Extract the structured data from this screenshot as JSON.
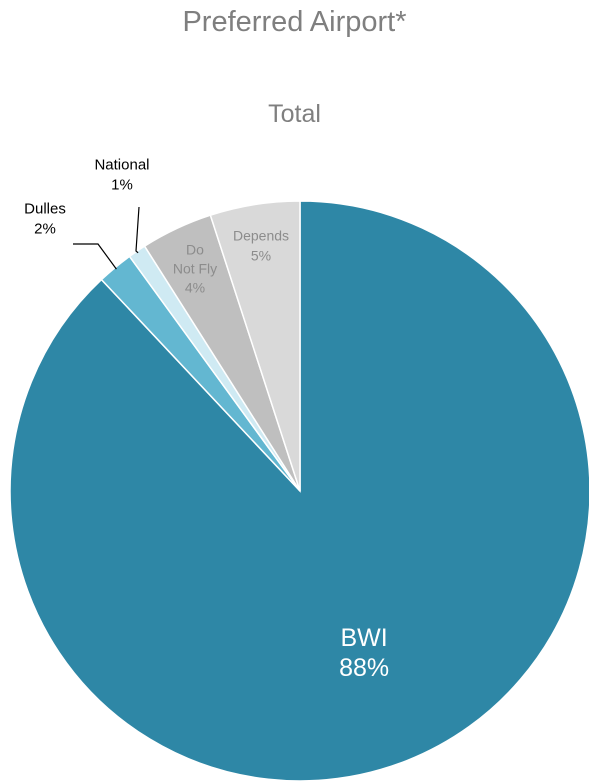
{
  "title": "Preferred Airport*",
  "subtitle": "Total",
  "chart_data": {
    "type": "pie",
    "title": "Preferred Airport*",
    "subtitle": "Total",
    "start": "12 o'clock",
    "direction": "clockwise",
    "slices": [
      {
        "id": "bwi",
        "label": "BWI",
        "value": 88,
        "value_label": "88%",
        "color": "#2e87a6",
        "text_color": "#ffffff"
      },
      {
        "id": "dulles",
        "label": "Dulles",
        "value": 2,
        "value_label": "2%",
        "color": "#63b7d1",
        "text_color": "#000000"
      },
      {
        "id": "national",
        "label": "National",
        "value": 1,
        "value_label": "1%",
        "color": "#cfeaf3",
        "text_color": "#000000"
      },
      {
        "id": "do-not-fly",
        "label": "Do Not Fly",
        "label_lines": [
          "Do",
          "Not Fly"
        ],
        "value": 4,
        "value_label": "4%",
        "color": "#bfbfbf",
        "text_color": "#8c8c8c"
      },
      {
        "id": "depends",
        "label": "Depends",
        "value": 5,
        "value_label": "5%",
        "color": "#d9d9d9",
        "text_color": "#8c8c8c"
      }
    ]
  }
}
